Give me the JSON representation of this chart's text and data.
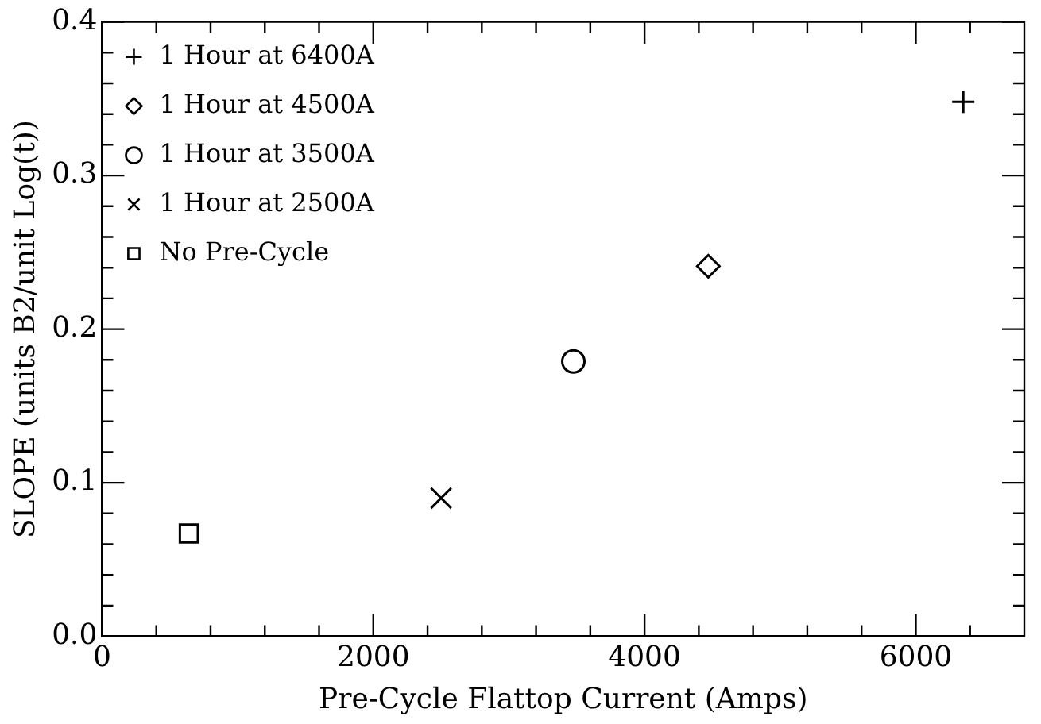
{
  "chart_data": {
    "type": "scatter",
    "xlabel": "Pre-Cycle Flattop Current (Amps)",
    "ylabel": "SLOPE (units B2/unit Log(t))",
    "xlim": [
      0,
      6800
    ],
    "ylim": [
      0,
      0.4
    ],
    "xticks": [
      0,
      {
        "value": 400,
        "label": null
      },
      {
        "value": 800,
        "label": null
      },
      {
        "value": 1200,
        "label": null
      },
      {
        "value": 1600,
        "label": null
      },
      2000,
      {
        "value": 2400,
        "label": null
      },
      {
        "value": 2800,
        "label": null
      },
      {
        "value": 3200,
        "label": null
      },
      {
        "value": 3600,
        "label": null
      },
      4000,
      {
        "value": 4400,
        "label": null
      },
      {
        "value": 4800,
        "label": null
      },
      {
        "value": 5200,
        "label": null
      },
      {
        "value": 5600,
        "label": null
      },
      6000,
      {
        "value": 6400,
        "label": null
      }
    ],
    "yticks": [
      {
        "value": 0,
        "label": "0.0"
      },
      {
        "value": 0.02,
        "label": null
      },
      {
        "value": 0.04,
        "label": null
      },
      {
        "value": 0.06,
        "label": null
      },
      {
        "value": 0.08,
        "label": null
      },
      0.1,
      {
        "value": 0.12,
        "label": null
      },
      {
        "value": 0.14,
        "label": null
      },
      {
        "value": 0.16,
        "label": null
      },
      {
        "value": 0.18,
        "label": null
      },
      0.2,
      {
        "value": 0.22,
        "label": null
      },
      {
        "value": 0.24,
        "label": null
      },
      {
        "value": 0.26,
        "label": null
      },
      {
        "value": 0.28,
        "label": null
      },
      0.3,
      {
        "value": 0.32,
        "label": null
      },
      {
        "value": 0.34,
        "label": null
      },
      {
        "value": 0.36,
        "label": null
      },
      {
        "value": 0.38,
        "label": null
      },
      0.4
    ],
    "grid": false,
    "legend": "top left",
    "series": [
      {
        "name": "1 Hour at 6400A",
        "color": "#000000",
        "marker": "cross",
        "x": [
          6350
        ],
        "values": [
          0.348
        ]
      },
      {
        "name": "1 Hour at 4500A",
        "color": "#000000",
        "marker": "diamond",
        "x": [
          4470
        ],
        "values": [
          0.241
        ]
      },
      {
        "name": "1 Hour at 3500A",
        "color": "#000000",
        "marker": "circle",
        "x": [
          3475
        ],
        "values": [
          0.179
        ]
      },
      {
        "name": "1 Hour at 2500A",
        "color": "#000000",
        "marker": "x",
        "x": [
          2500
        ],
        "values": [
          0.09
        ]
      },
      {
        "name": "No Pre-Cycle",
        "color": "#000000",
        "marker": "square",
        "x": [
          640
        ],
        "values": [
          0.067
        ]
      }
    ]
  }
}
